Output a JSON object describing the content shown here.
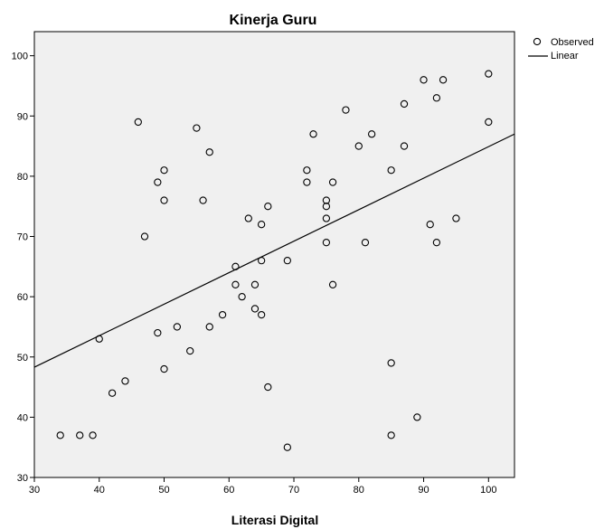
{
  "chart_data": {
    "type": "scatter",
    "title": "Kinerja Guru",
    "xlabel": "Literasi Digital",
    "ylabel": "",
    "xlim": [
      30,
      104
    ],
    "ylim": [
      30,
      104
    ],
    "x_ticks": [
      30,
      40,
      50,
      60,
      70,
      80,
      90,
      100
    ],
    "y_ticks": [
      30,
      40,
      50,
      60,
      70,
      80,
      90,
      100
    ],
    "grid": false,
    "legend_position": "top-right",
    "plot_background": "#f0f0f0",
    "marker_color": "#000000",
    "line_color": "#000000",
    "series": [
      {
        "name": "Observed",
        "x": [
          34,
          37,
          39,
          40,
          42,
          44,
          46,
          47,
          49,
          49,
          50,
          50,
          50,
          52,
          54,
          55,
          56,
          57,
          57,
          59,
          61,
          61,
          62,
          63,
          64,
          64,
          65,
          65,
          65,
          66,
          66,
          69,
          69,
          72,
          72,
          73,
          75,
          75,
          75,
          75,
          76,
          76,
          78,
          80,
          81,
          82,
          85,
          85,
          85,
          87,
          87,
          89,
          90,
          91,
          92,
          92,
          93,
          95,
          100,
          100
        ],
        "y": [
          37,
          37,
          37,
          53,
          44,
          46,
          89,
          70,
          79,
          54,
          81,
          76,
          48,
          55,
          51,
          88,
          76,
          84,
          55,
          57,
          65,
          62,
          60,
          73,
          62,
          58,
          72,
          66,
          57,
          75,
          45,
          66,
          35,
          81,
          79,
          87,
          76,
          75,
          73,
          69,
          79,
          62,
          91,
          85,
          69,
          87,
          81,
          49,
          37,
          92,
          85,
          40,
          96,
          72,
          93,
          69,
          96,
          73,
          97,
          89
        ]
      },
      {
        "name": "Linear",
        "type": "line",
        "x": [
          30,
          104
        ],
        "y": [
          48.3,
          87
        ]
      }
    ]
  }
}
